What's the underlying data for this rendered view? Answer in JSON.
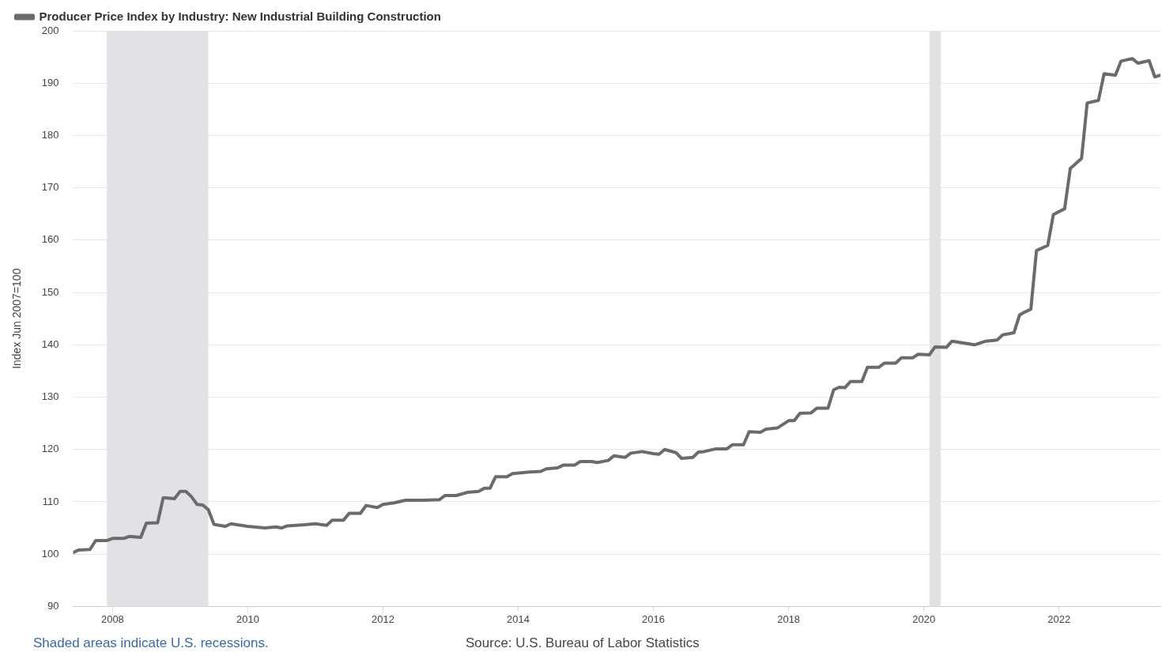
{
  "chart_data": {
    "type": "line",
    "ylabel": "Index Jun 2007=100",
    "legend": "top left",
    "grid": "y",
    "marker": "none",
    "line_style": "solid",
    "xlim": [
      "2007-06",
      "2023-07"
    ],
    "xticks": [
      {
        "value": "2008",
        "label": "2008"
      },
      {
        "value": "2010",
        "label": "2010"
      },
      {
        "value": "2012",
        "label": "2012"
      },
      {
        "value": "2014",
        "label": "2014"
      },
      {
        "value": "2016",
        "label": "2016"
      },
      {
        "value": "2018",
        "label": "2018"
      },
      {
        "value": "2020",
        "label": "2020"
      },
      {
        "value": "2022",
        "label": "2022"
      }
    ],
    "ylim": [
      90,
      200
    ],
    "yticks": [
      90,
      100,
      110,
      120,
      130,
      140,
      150,
      160,
      170,
      180,
      190,
      200
    ],
    "bands": [
      {
        "axis": "x",
        "from": "2007-12",
        "to": "2009-06",
        "color": "#e1e2e6"
      },
      {
        "axis": "x",
        "from": "2020-02",
        "to": "2020-04",
        "color": "#e1e2e6"
      }
    ],
    "annotations": [
      "Shaded areas indicate U.S. recessions.",
      "Source: U.S. Bureau of Labor Statistics"
    ],
    "series": [
      {
        "name": "Producer Price Index by Industry: New Industrial Building Construction",
        "color": "#6b6b6b",
        "x": [
          "2007-06",
          "2007-07",
          "2007-09",
          "2007-10",
          "2007-12",
          "2008-01",
          "2008-03",
          "2008-04",
          "2008-06",
          "2008-07",
          "2008-09",
          "2008-10",
          "2008-12",
          "2009-01",
          "2009-02",
          "2009-03",
          "2009-04",
          "2009-05",
          "2009-06",
          "2009-07",
          "2009-09",
          "2009-10",
          "2010-01",
          "2010-04",
          "2010-06",
          "2010-07",
          "2010-08",
          "2010-11",
          "2011-01",
          "2011-03",
          "2011-04",
          "2011-06",
          "2011-07",
          "2011-09",
          "2011-10",
          "2011-12",
          "2012-01",
          "2012-03",
          "2012-05",
          "2012-08",
          "2012-11",
          "2012-12",
          "2013-02",
          "2013-04",
          "2013-06",
          "2013-07",
          "2013-08",
          "2013-09",
          "2013-11",
          "2013-12",
          "2014-03",
          "2014-05",
          "2014-06",
          "2014-08",
          "2014-09",
          "2014-11",
          "2014-12",
          "2015-02",
          "2015-03",
          "2015-05",
          "2015-06",
          "2015-08",
          "2015-09",
          "2015-11",
          "2016-01",
          "2016-02",
          "2016-03",
          "2016-05",
          "2016-06",
          "2016-08",
          "2016-09",
          "2016-10",
          "2016-12",
          "2017-02",
          "2017-03",
          "2017-05",
          "2017-06",
          "2017-08",
          "2017-09",
          "2017-11",
          "2018-01",
          "2018-02",
          "2018-03",
          "2018-05",
          "2018-06",
          "2018-08",
          "2018-09",
          "2018-10",
          "2018-11",
          "2018-12",
          "2019-02",
          "2019-03",
          "2019-05",
          "2019-06",
          "2019-08",
          "2019-09",
          "2019-11",
          "2019-12",
          "2020-02",
          "2020-03",
          "2020-05",
          "2020-06",
          "2020-10",
          "2020-12",
          "2021-02",
          "2021-03",
          "2021-05",
          "2021-06",
          "2021-07",
          "2021-08",
          "2021-09",
          "2021-11",
          "2021-12",
          "2022-02",
          "2022-03",
          "2022-05",
          "2022-06",
          "2022-08",
          "2022-09",
          "2022-11",
          "2022-12",
          "2023-02",
          "2023-03",
          "2023-05",
          "2023-06",
          "2023-07"
        ],
        "values": [
          100.3,
          100.8,
          100.9,
          102.6,
          102.6,
          103.0,
          103.0,
          103.4,
          103.2,
          105.9,
          106.0,
          110.8,
          110.6,
          112.0,
          112.0,
          111.0,
          109.5,
          109.4,
          108.5,
          105.7,
          105.3,
          105.8,
          105.3,
          105.0,
          105.2,
          105.0,
          105.4,
          105.6,
          105.8,
          105.5,
          106.5,
          106.5,
          107.8,
          107.8,
          109.3,
          108.9,
          109.5,
          109.8,
          110.3,
          110.3,
          110.4,
          111.2,
          111.2,
          111.8,
          112.0,
          112.6,
          112.6,
          114.8,
          114.8,
          115.4,
          115.7,
          115.8,
          116.3,
          116.5,
          117.0,
          117.0,
          117.7,
          117.7,
          117.5,
          117.9,
          118.8,
          118.5,
          119.3,
          119.6,
          119.2,
          119.1,
          120.0,
          119.4,
          118.3,
          118.5,
          119.5,
          119.6,
          120.1,
          120.1,
          120.9,
          120.9,
          123.4,
          123.3,
          123.9,
          124.1,
          125.5,
          125.5,
          126.9,
          127.0,
          127.9,
          127.9,
          131.4,
          131.9,
          131.8,
          133.0,
          133.0,
          135.7,
          135.7,
          136.5,
          136.5,
          137.5,
          137.5,
          138.2,
          138.1,
          139.6,
          139.5,
          140.7,
          140.0,
          140.7,
          140.9,
          141.9,
          142.3,
          145.7,
          146.3,
          146.8,
          158.0,
          159.0,
          164.9,
          166.0,
          173.7,
          175.6,
          186.2,
          186.7,
          191.8,
          191.5,
          194.2,
          194.7,
          193.8,
          194.3,
          191.2,
          191.5
        ]
      }
    ]
  }
}
